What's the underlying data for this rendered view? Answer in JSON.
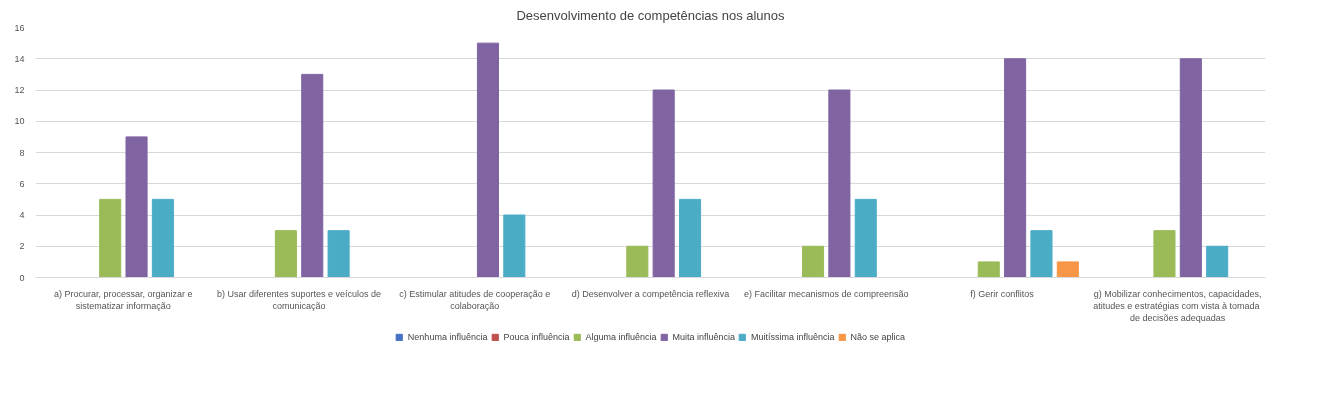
{
  "chart_data": {
    "type": "bar",
    "title": "Desenvolvimento de competências nos alunos",
    "categories": [
      "a) Procurar, processar, organizar e sistematizar informação",
      "b) Usar diferentes suportes e veículos de comunicação",
      "c) Estimular atitudes de cooperação e colaboração",
      "d) Desenvolver a competência reflexiva",
      "e) Facilitar mecanismos de compreensão",
      "f) Gerir conflitos",
      "g) Mobilizar conhecimentos, capacidades, atitudes e estratégias  com vista à tomada de decisões adequadas"
    ],
    "series": [
      {
        "name": "Nenhuma influência",
        "color": "#4472c4",
        "values": [
          0,
          0,
          0,
          0,
          0,
          0,
          0
        ]
      },
      {
        "name": "Pouca influência",
        "color": "#c0504d",
        "values": [
          0,
          0,
          0,
          0,
          0,
          0,
          0
        ]
      },
      {
        "name": "Alguma influência",
        "color": "#9bbb59",
        "values": [
          5,
          3,
          0,
          2,
          2,
          1,
          3
        ]
      },
      {
        "name": "Muita influência",
        "color": "#8064a2",
        "values": [
          9,
          13,
          15,
          12,
          12,
          14,
          14
        ]
      },
      {
        "name": "Muitíssima influência",
        "color": "#4bacc6",
        "values": [
          5,
          3,
          4,
          5,
          5,
          3,
          2
        ]
      },
      {
        "name": "Não se aplica",
        "color": "#f79646",
        "values": [
          0,
          0,
          0,
          0,
          0,
          1,
          0
        ]
      }
    ],
    "ylim": [
      0,
      16
    ],
    "yticks": [
      0,
      2,
      4,
      6,
      8,
      10,
      12,
      14,
      16
    ],
    "grid": "y",
    "legend": "bottom"
  }
}
